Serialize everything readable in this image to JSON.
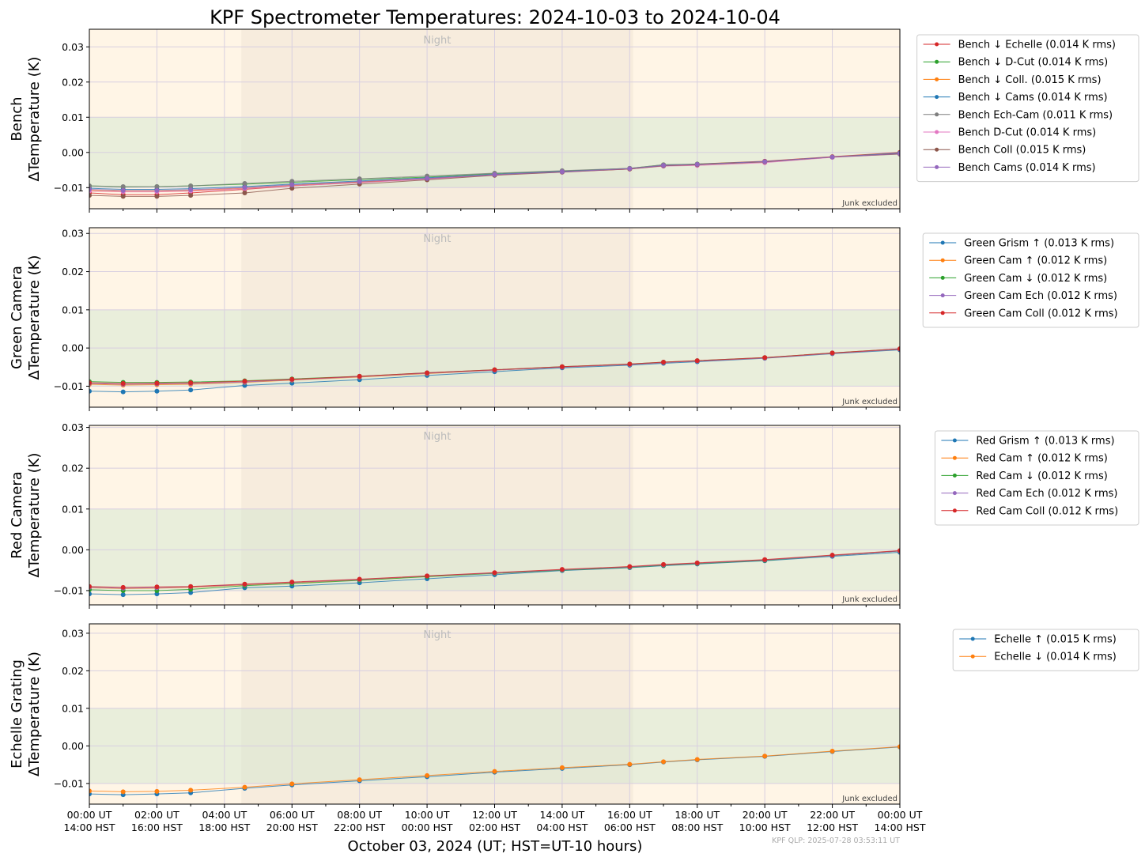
{
  "figure": {
    "title": "KPF Spectrometer Temperatures: 2024-10-03 to 2024-10-04",
    "xlabel": "October 03, 2024 (UT; HST=UT-10 hours)",
    "footer": "KPF QLP: 2025-07-28 03:53:11 UT"
  },
  "chart_data": [
    {
      "type": "line",
      "ylabel_line1": "Bench",
      "ylabel_line2": "ΔTemperature (K)",
      "night_label": "Night",
      "note": "Junk excluded",
      "xlim": [
        0,
        24
      ],
      "ylim": [
        -0.016,
        0.035
      ],
      "yticks": [
        -0.01,
        0.0,
        0.01,
        0.02,
        0.03
      ],
      "ytick_labels": [
        "−0.01",
        "0.00",
        "0.01",
        "0.02",
        "0.03"
      ],
      "xtick_labels": [
        "00:00 UT\n14:00 HST",
        "02:00 UT\n16:00 HST",
        "04:00 UT\n18:00 HST",
        "06:00 UT\n20:00 HST",
        "08:00 UT\n22:00 HST",
        "10:00 UT\n00:00 HST",
        "12:00 UT\n02:00 HST",
        "14:00 UT\n04:00 HST",
        "16:00 UT\n06:00 HST",
        "18:00 UT\n08:00 HST",
        "20:00 UT\n10:00 HST",
        "22:00 UT\n12:00 HST",
        "00:00 UT\n14:00 HST"
      ],
      "night_range": [
        4.5,
        16.1
      ],
      "band": [
        -0.01,
        0.01
      ],
      "legend_position": "outside-right",
      "series": [
        {
          "name": "Bench ↓ Echelle (0.014 K rms)",
          "color": "#d62728",
          "x": [
            0,
            1,
            2,
            3,
            4.6,
            6,
            8,
            10,
            12,
            14,
            16,
            17,
            18,
            20,
            22,
            24
          ],
          "y": [
            -0.0115,
            -0.012,
            -0.012,
            -0.0115,
            -0.0105,
            -0.0095,
            -0.0085,
            -0.0075,
            -0.0063,
            -0.0055,
            -0.0047,
            -0.0037,
            -0.0033,
            -0.0025,
            -0.0012,
            0.0
          ]
        },
        {
          "name": "Bench ↓ D-Cut (0.014 K rms)",
          "color": "#2ca02c",
          "x": [
            0,
            1,
            2,
            3,
            4.6,
            6,
            8,
            10,
            12,
            14,
            16,
            17,
            18,
            20,
            22,
            24
          ],
          "y": [
            -0.0095,
            -0.0098,
            -0.0097,
            -0.0095,
            -0.009,
            -0.0085,
            -0.0077,
            -0.007,
            -0.006,
            -0.0053,
            -0.0045,
            -0.0035,
            -0.0033,
            -0.0026,
            -0.0013,
            -0.0002
          ]
        },
        {
          "name": "Bench ↓ Coll. (0.015 K rms)",
          "color": "#ff7f0e",
          "x": [
            0,
            1,
            2,
            3,
            4.6,
            6,
            8,
            10,
            12,
            14,
            16,
            17,
            18,
            20,
            22,
            24
          ],
          "y": [
            -0.0108,
            -0.011,
            -0.011,
            -0.0108,
            -0.0102,
            -0.0094,
            -0.0084,
            -0.0074,
            -0.0063,
            -0.0055,
            -0.0047,
            -0.0038,
            -0.0035,
            -0.0027,
            -0.0013,
            -0.0003
          ]
        },
        {
          "name": "Bench ↓ Cams (0.014 K rms)",
          "color": "#1f77b4",
          "x": [
            0,
            1,
            2,
            3,
            4.6,
            6,
            8,
            10,
            12,
            14,
            16,
            17,
            18,
            20,
            22,
            24
          ],
          "y": [
            -0.0102,
            -0.0105,
            -0.0105,
            -0.0103,
            -0.0097,
            -0.009,
            -0.0081,
            -0.0072,
            -0.0062,
            -0.0054,
            -0.0046,
            -0.0037,
            -0.0034,
            -0.0026,
            -0.0013,
            -0.0002
          ]
        },
        {
          "name": "Bench Ech-Cam (0.011 K rms)",
          "color": "#7f7f7f",
          "x": [
            0,
            1,
            2,
            3,
            4.6,
            6,
            8,
            10,
            12,
            14,
            16,
            17,
            18,
            20,
            22,
            24
          ],
          "y": [
            -0.0095,
            -0.0097,
            -0.0097,
            -0.0095,
            -0.0088,
            -0.0082,
            -0.0075,
            -0.0067,
            -0.0059,
            -0.0052,
            -0.0045,
            -0.0035,
            -0.0034,
            -0.0027,
            -0.0013,
            -0.0005
          ]
        },
        {
          "name": "Bench D-Cut (0.014 K rms)",
          "color": "#e377c2",
          "x": [
            0,
            1,
            2,
            3,
            4.6,
            6,
            8,
            10,
            12,
            14,
            16,
            17,
            18,
            20,
            22,
            24
          ],
          "y": [
            -0.011,
            -0.0112,
            -0.0112,
            -0.011,
            -0.0103,
            -0.0095,
            -0.0086,
            -0.0076,
            -0.0064,
            -0.0056,
            -0.0047,
            -0.0039,
            -0.0037,
            -0.0029,
            -0.0014,
            -0.0004
          ]
        },
        {
          "name": "Bench Coll (0.015 K rms)",
          "color": "#8c564b",
          "x": [
            0,
            1,
            2,
            3,
            4.6,
            6,
            8,
            10,
            12,
            14,
            16,
            17,
            18,
            20,
            22,
            24
          ],
          "y": [
            -0.0122,
            -0.0125,
            -0.0125,
            -0.0122,
            -0.0115,
            -0.0102,
            -0.009,
            -0.0078,
            -0.0065,
            -0.0056,
            -0.0047,
            -0.0038,
            -0.0035,
            -0.0027,
            -0.0013,
            -0.0004
          ]
        },
        {
          "name": "Bench Cams (0.014 K rms)",
          "color": "#9467bd",
          "x": [
            0,
            1,
            2,
            3,
            4.6,
            6,
            8,
            10,
            12,
            14,
            16,
            17,
            18,
            20,
            22,
            24
          ],
          "y": [
            -0.0105,
            -0.0108,
            -0.0108,
            -0.0106,
            -0.01,
            -0.0092,
            -0.0083,
            -0.0074,
            -0.0063,
            -0.0055,
            -0.0046,
            -0.0037,
            -0.0034,
            -0.0026,
            -0.0013,
            -0.0003
          ]
        }
      ]
    },
    {
      "type": "line",
      "ylabel_line1": "Green Camera",
      "ylabel_line2": "ΔTemperature (K)",
      "night_label": "Night",
      "note": "Junk excluded",
      "xlim": [
        0,
        24
      ],
      "ylim": [
        -0.0155,
        0.0315
      ],
      "yticks": [
        -0.01,
        0.0,
        0.01,
        0.02,
        0.03
      ],
      "ytick_labels": [
        "−0.01",
        "0.00",
        "0.01",
        "0.02",
        "0.03"
      ],
      "xtick_labels": [
        "00:00 UT\n14:00 HST",
        "02:00 UT\n16:00 HST",
        "04:00 UT\n18:00 HST",
        "06:00 UT\n20:00 HST",
        "08:00 UT\n22:00 HST",
        "10:00 UT\n00:00 HST",
        "12:00 UT\n02:00 HST",
        "14:00 UT\n04:00 HST",
        "16:00 UT\n06:00 HST",
        "18:00 UT\n08:00 HST",
        "20:00 UT\n10:00 HST",
        "22:00 UT\n12:00 HST",
        "00:00 UT\n14:00 HST"
      ],
      "night_range": [
        4.5,
        16.1
      ],
      "band": [
        -0.01,
        0.01
      ],
      "legend_position": "outside-right",
      "series": [
        {
          "name": "Green Grism ↑ (0.013 K rms)",
          "color": "#1f77b4",
          "x": [
            0,
            1,
            2,
            3,
            4.6,
            6,
            8,
            10,
            12,
            14,
            16,
            17,
            18,
            20,
            22,
            24
          ],
          "y": [
            -0.0113,
            -0.0115,
            -0.0113,
            -0.011,
            -0.0098,
            -0.0092,
            -0.0083,
            -0.0072,
            -0.0062,
            -0.0052,
            -0.0045,
            -0.004,
            -0.0036,
            -0.0027,
            -0.0015,
            -0.0005
          ]
        },
        {
          "name": "Green Cam ↑ (0.012 K rms)",
          "color": "#ff7f0e",
          "x": [
            0,
            1,
            2,
            3,
            4.6,
            6,
            8,
            10,
            12,
            14,
            16,
            17,
            18,
            20,
            22,
            24
          ],
          "y": [
            -0.0095,
            -0.0097,
            -0.0096,
            -0.0095,
            -0.009,
            -0.0084,
            -0.0076,
            -0.0067,
            -0.0058,
            -0.005,
            -0.0043,
            -0.0038,
            -0.0034,
            -0.0026,
            -0.0014,
            -0.0003
          ]
        },
        {
          "name": "Green Cam ↓ (0.012 K rms)",
          "color": "#2ca02c",
          "x": [
            0,
            1,
            2,
            3,
            4.6,
            6,
            8,
            10,
            12,
            14,
            16,
            17,
            18,
            20,
            22,
            24
          ],
          "y": [
            -0.0088,
            -0.009,
            -0.009,
            -0.0089,
            -0.0086,
            -0.0081,
            -0.0074,
            -0.0065,
            -0.0057,
            -0.0049,
            -0.0042,
            -0.0037,
            -0.0033,
            -0.0025,
            -0.0013,
            -0.0002
          ]
        },
        {
          "name": "Green Cam Ech (0.012 K rms)",
          "color": "#9467bd",
          "x": [
            0,
            1,
            2,
            3,
            4.6,
            6,
            8,
            10,
            12,
            14,
            16,
            17,
            18,
            20,
            22,
            24
          ],
          "y": [
            -0.0093,
            -0.0095,
            -0.0094,
            -0.0093,
            -0.0089,
            -0.0083,
            -0.0075,
            -0.0066,
            -0.0058,
            -0.005,
            -0.0043,
            -0.0038,
            -0.0034,
            -0.0026,
            -0.0014,
            -0.0003
          ]
        },
        {
          "name": "Green Cam Coll (0.012 K rms)",
          "color": "#d62728",
          "x": [
            0,
            1,
            2,
            3,
            4.6,
            6,
            8,
            10,
            12,
            14,
            16,
            17,
            18,
            20,
            22,
            24
          ],
          "y": [
            -0.0091,
            -0.0093,
            -0.0092,
            -0.0091,
            -0.0087,
            -0.0082,
            -0.0074,
            -0.0065,
            -0.0057,
            -0.0049,
            -0.0042,
            -0.0037,
            -0.0033,
            -0.0025,
            -0.0013,
            -0.0002
          ]
        }
      ]
    },
    {
      "type": "line",
      "ylabel_line1": "Red Camera",
      "ylabel_line2": "ΔTemperature (K)",
      "night_label": "Night",
      "note": "Junk excluded",
      "xlim": [
        0,
        24
      ],
      "ylim": [
        -0.0135,
        0.0305
      ],
      "yticks": [
        -0.01,
        0.0,
        0.01,
        0.02,
        0.03
      ],
      "ytick_labels": [
        "−0.01",
        "0.00",
        "0.01",
        "0.02",
        "0.03"
      ],
      "xtick_labels": [
        "00:00 UT\n14:00 HST",
        "02:00 UT\n16:00 HST",
        "04:00 UT\n18:00 HST",
        "06:00 UT\n20:00 HST",
        "08:00 UT\n22:00 HST",
        "10:00 UT\n00:00 HST",
        "12:00 UT\n02:00 HST",
        "14:00 UT\n04:00 HST",
        "16:00 UT\n06:00 HST",
        "18:00 UT\n08:00 HST",
        "20:00 UT\n10:00 HST",
        "22:00 UT\n12:00 HST",
        "00:00 UT\n14:00 HST"
      ],
      "night_range": [
        4.5,
        16.1
      ],
      "band": [
        -0.01,
        0.01
      ],
      "legend_position": "outside-right",
      "series": [
        {
          "name": "Red Grism ↑ (0.013 K rms)",
          "color": "#1f77b4",
          "x": [
            0,
            1,
            2,
            3,
            4.6,
            6,
            8,
            10,
            12,
            14,
            16,
            17,
            18,
            20,
            22,
            24
          ],
          "y": [
            -0.0108,
            -0.011,
            -0.0108,
            -0.0105,
            -0.0093,
            -0.0089,
            -0.0081,
            -0.0071,
            -0.0061,
            -0.0051,
            -0.0044,
            -0.0039,
            -0.0035,
            -0.0027,
            -0.0016,
            -0.0006
          ]
        },
        {
          "name": "Red Cam ↑ (0.012 K rms)",
          "color": "#ff7f0e",
          "x": [
            0,
            1,
            2,
            3,
            4.6,
            6,
            8,
            10,
            12,
            14,
            16,
            17,
            18,
            20,
            22,
            24
          ],
          "y": [
            -0.0093,
            -0.0095,
            -0.0094,
            -0.0092,
            -0.0086,
            -0.0081,
            -0.0074,
            -0.0065,
            -0.0057,
            -0.0049,
            -0.0042,
            -0.0037,
            -0.0033,
            -0.0025,
            -0.0014,
            -0.0003
          ]
        },
        {
          "name": "Red Cam ↓ (0.012 K rms)",
          "color": "#2ca02c",
          "x": [
            0,
            1,
            2,
            3,
            4.6,
            6,
            8,
            10,
            12,
            14,
            16,
            17,
            18,
            20,
            22,
            24
          ],
          "y": [
            -0.0098,
            -0.01,
            -0.01,
            -0.0097,
            -0.0088,
            -0.0083,
            -0.0075,
            -0.0066,
            -0.0058,
            -0.005,
            -0.0043,
            -0.0038,
            -0.0034,
            -0.0026,
            -0.0014,
            -0.0003
          ]
        },
        {
          "name": "Red Cam Ech (0.012 K rms)",
          "color": "#9467bd",
          "x": [
            0,
            1,
            2,
            3,
            4.6,
            6,
            8,
            10,
            12,
            14,
            16,
            17,
            18,
            20,
            22,
            24
          ],
          "y": [
            -0.0092,
            -0.0094,
            -0.0093,
            -0.0091,
            -0.0085,
            -0.008,
            -0.0073,
            -0.0064,
            -0.0057,
            -0.0049,
            -0.0042,
            -0.0037,
            -0.0033,
            -0.0025,
            -0.0014,
            -0.0003
          ]
        },
        {
          "name": "Red Cam Coll (0.012 K rms)",
          "color": "#d62728",
          "x": [
            0,
            1,
            2,
            3,
            4.6,
            6,
            8,
            10,
            12,
            14,
            16,
            17,
            18,
            20,
            22,
            24
          ],
          "y": [
            -0.009,
            -0.0092,
            -0.0091,
            -0.009,
            -0.0084,
            -0.0079,
            -0.0072,
            -0.0064,
            -0.0056,
            -0.0048,
            -0.0041,
            -0.0036,
            -0.0032,
            -0.0024,
            -0.0013,
            -0.0002
          ]
        }
      ]
    },
    {
      "type": "line",
      "ylabel_line1": "Echelle Grating",
      "ylabel_line2": "ΔTemperature (K)",
      "night_label": "Night",
      "note": "Junk excluded",
      "xlim": [
        0,
        24
      ],
      "ylim": [
        -0.0155,
        0.0325
      ],
      "yticks": [
        -0.01,
        0.0,
        0.01,
        0.02,
        0.03
      ],
      "ytick_labels": [
        "−0.01",
        "0.00",
        "0.01",
        "0.02",
        "0.03"
      ],
      "xtick_labels": [
        "00:00 UT\n14:00 HST",
        "02:00 UT\n16:00 HST",
        "04:00 UT\n18:00 HST",
        "06:00 UT\n20:00 HST",
        "08:00 UT\n22:00 HST",
        "10:00 UT\n00:00 HST",
        "12:00 UT\n02:00 HST",
        "14:00 UT\n04:00 HST",
        "16:00 UT\n06:00 HST",
        "18:00 UT\n08:00 HST",
        "20:00 UT\n10:00 HST",
        "22:00 UT\n12:00 HST",
        "00:00 UT\n14:00 HST"
      ],
      "night_range": [
        4.5,
        16.1
      ],
      "band": [
        -0.01,
        0.01
      ],
      "legend_position": "outside-right",
      "series": [
        {
          "name": "Echelle ↑ (0.015 K rms)",
          "color": "#1f77b4",
          "x": [
            0,
            1,
            2,
            3,
            4.6,
            6,
            8,
            10,
            12,
            14,
            16,
            17,
            18,
            20,
            22,
            24
          ],
          "y": [
            -0.0128,
            -0.013,
            -0.0128,
            -0.0125,
            -0.0113,
            -0.0104,
            -0.0093,
            -0.0082,
            -0.007,
            -0.006,
            -0.005,
            -0.0043,
            -0.0037,
            -0.0028,
            -0.0015,
            -0.0003
          ]
        },
        {
          "name": "Echelle ↓ (0.014 K rms)",
          "color": "#ff7f0e",
          "x": [
            0,
            1,
            2,
            3,
            4.6,
            6,
            8,
            10,
            12,
            14,
            16,
            17,
            18,
            20,
            22,
            24
          ],
          "y": [
            -0.012,
            -0.0122,
            -0.0121,
            -0.0118,
            -0.011,
            -0.0101,
            -0.009,
            -0.0079,
            -0.0068,
            -0.0058,
            -0.0049,
            -0.0042,
            -0.0036,
            -0.0027,
            -0.0014,
            -0.0002
          ]
        }
      ]
    }
  ]
}
